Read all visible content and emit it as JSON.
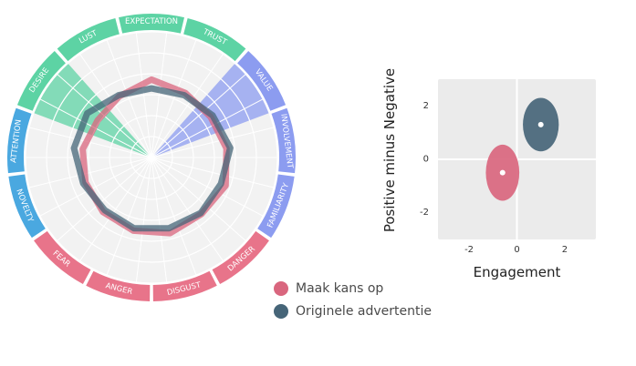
{
  "chart_data": [
    {
      "type": "radar",
      "categories": [
        "EXPECTATION",
        "TRUST",
        "VALUE",
        "INVOLVEMENT",
        "FAMILIARITY",
        "DANGER",
        "DISGUST",
        "ANGER",
        "FEAR",
        "NOVELTY",
        "ATTENTION",
        "DESIRE",
        "LUST"
      ],
      "segment_colors": {
        "EXPECTATION": "#5dd3a4",
        "TRUST": "#5dd3a4",
        "VALUE": "#8c9cf0",
        "INVOLVEMENT": "#8c9cf0",
        "FAMILIARITY": "#8c9cf0",
        "DANGER": "#e8748a",
        "DISGUST": "#e8748a",
        "ANGER": "#e8748a",
        "FEAR": "#e8748a",
        "NOVELTY": "#4aa8e0",
        "ATTENTION": "#4aa8e0",
        "DESIRE": "#5dd3a4",
        "LUST": "#5dd3a4"
      },
      "highlight_sectors": [
        {
          "category": "DESIRE",
          "color": "#5dd3a4"
        },
        {
          "category": "VALUE",
          "color": "#8c9cf0"
        }
      ],
      "grid_rings": 6,
      "series": [
        {
          "name": "Maak kans op",
          "color": "#d9667e",
          "values": [
            0.62,
            0.58,
            0.57,
            0.6,
            0.63,
            0.6,
            0.62,
            0.6,
            0.58,
            0.56,
            0.55,
            0.52,
            0.55
          ]
        },
        {
          "name": "Originele advertentie",
          "color": "#466578",
          "values": [
            0.55,
            0.56,
            0.59,
            0.63,
            0.59,
            0.59,
            0.58,
            0.58,
            0.56,
            0.58,
            0.62,
            0.62,
            0.56
          ]
        }
      ]
    },
    {
      "type": "scatter",
      "xlabel": "Engagement",
      "ylabel": "Positive minus Negative",
      "xlim": [
        -3.3,
        3.3
      ],
      "ylim": [
        -3.0,
        3.0
      ],
      "xticks": [
        -2,
        0,
        2
      ],
      "yticks": [
        2,
        0,
        -2
      ],
      "points": [
        {
          "series": "Maak kans op",
          "x": -0.6,
          "y": -0.5,
          "sx": 0.7,
          "sy": 1.05,
          "color": "#d9667e"
        },
        {
          "series": "Originele advertentie",
          "x": 1.0,
          "y": 1.3,
          "sx": 0.75,
          "sy": 1.0,
          "color": "#466578"
        }
      ]
    }
  ],
  "legend": {
    "items": [
      {
        "label": "Maak kans op",
        "color": "#d9667e"
      },
      {
        "label": "Originele advertentie",
        "color": "#466578"
      }
    ]
  }
}
